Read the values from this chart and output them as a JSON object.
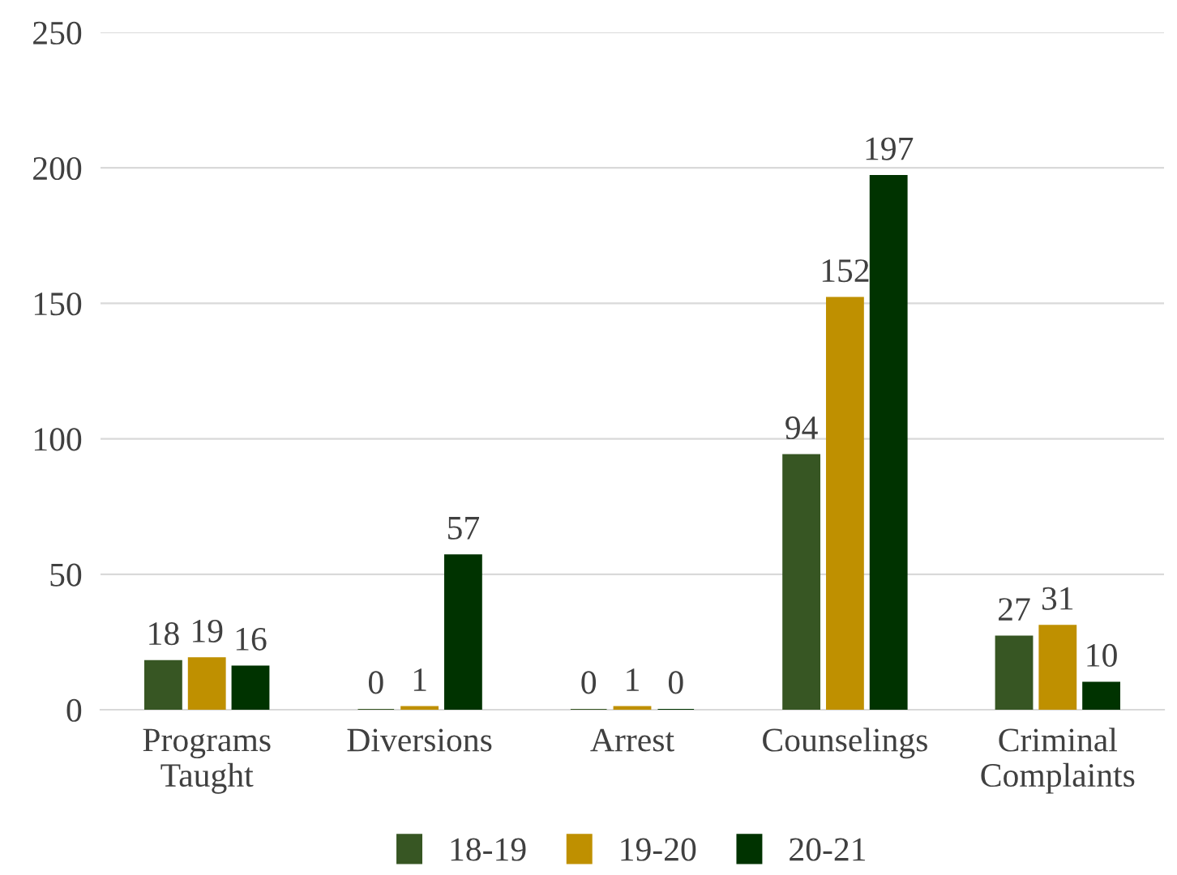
{
  "chart_data": {
    "type": "bar",
    "categories": [
      "Programs\nTaught",
      "Diversions",
      "Arrest",
      "Counselings",
      "Criminal\nComplaints"
    ],
    "series": [
      {
        "name": "18-19",
        "color": "#375623",
        "values": [
          18,
          0,
          0,
          94,
          27
        ]
      },
      {
        "name": "19-20",
        "color": "#bf9000",
        "values": [
          19,
          1,
          1,
          152,
          31
        ]
      },
      {
        "name": "20-21",
        "color": "#003300",
        "values": [
          16,
          57,
          0,
          197,
          10
        ]
      }
    ],
    "ylim": [
      0,
      250
    ],
    "yticks": [
      0,
      50,
      100,
      150,
      200,
      250
    ],
    "grid": "y",
    "legend": "bottom",
    "data_labels": true
  }
}
